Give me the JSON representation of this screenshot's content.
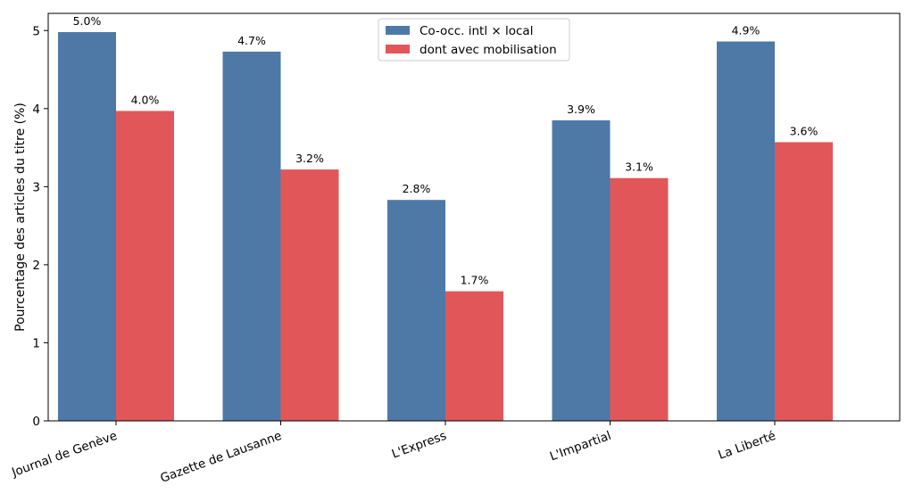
{
  "chart_data": {
    "type": "bar",
    "title": "",
    "xlabel": "",
    "ylabel": "Pourcentage des articles du titre (%)",
    "ylim": [
      0,
      5.22
    ],
    "yticks": [
      0,
      1,
      2,
      3,
      4,
      5
    ],
    "categories": [
      "Journal de Genève",
      "Gazette de Lausanne",
      "L'Express",
      "L'Impartial",
      "La Liberté"
    ],
    "series": [
      {
        "name": "Co-occ. intl × local",
        "color": "#4e79a7",
        "values": [
          4.98,
          4.73,
          2.83,
          3.85,
          4.86
        ],
        "labels": [
          "5.0%",
          "4.7%",
          "2.8%",
          "3.9%",
          "4.9%"
        ]
      },
      {
        "name": "dont avec mobilisation",
        "color": "#e15759",
        "values": [
          3.97,
          3.22,
          1.66,
          3.11,
          3.57
        ],
        "labels": [
          "4.0%",
          "3.2%",
          "1.7%",
          "3.1%",
          "3.6%"
        ]
      }
    ],
    "legend_position": "top-center",
    "grid": false
  }
}
